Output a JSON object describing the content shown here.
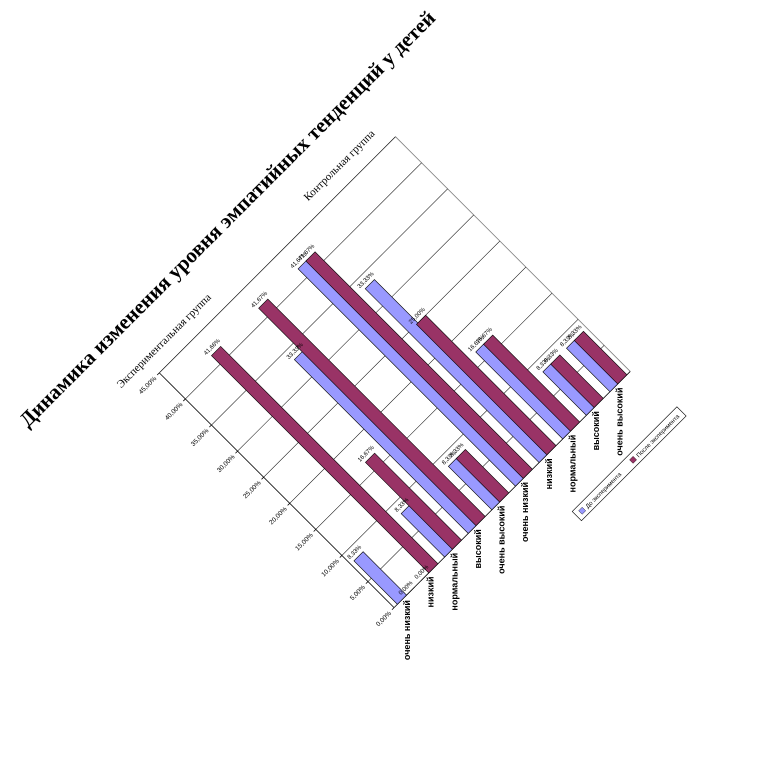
{
  "chart_data": {
    "type": "bar",
    "title": "Динамика изменения уровня эмпатийных тенденций у детей",
    "group_labels": [
      "Экспериментальная группа",
      "Контрольная группа"
    ],
    "categories": [
      "очень низкий",
      "низкий",
      "нормальный",
      "высокий",
      "очень высокий",
      "очень низкий",
      "низкий",
      "нормальный",
      "высокий",
      "очень высокий"
    ],
    "series": [
      {
        "name": "До эксперимента",
        "values": [
          8.33,
          0.0,
          8.33,
          33.33,
          8.33,
          41.67,
          33.33,
          16.67,
          8.33,
          8.33
        ],
        "labels": [
          "8,33%",
          "0,00%",
          "8,33%",
          "33,33%",
          "8,33%",
          "41,67%",
          "33,33%",
          "16,67%",
          "8,33%",
          "8,33%"
        ]
      },
      {
        "name": "После эксперимента",
        "values": [
          0.0,
          41.66,
          16.67,
          41.67,
          8.33,
          41.67,
          25.0,
          16.67,
          8.33,
          8.33
        ],
        "labels": [
          "0,00%",
          "41,66%",
          "16,67%",
          "41,67%",
          "8,33%",
          "41,67%",
          "25,00%",
          "16,67%",
          "8,33%",
          "8,33%"
        ]
      }
    ],
    "ylim": [
      0,
      45
    ],
    "yticks": [
      "0,00%",
      "5,00%",
      "10,00%",
      "15,00%",
      "20,00%",
      "25,00%",
      "30,00%",
      "35,00%",
      "40,00%",
      "45,00%"
    ],
    "grid": true,
    "legend_position": "bottom-right",
    "colors": {
      "series1": "#9999ff",
      "series2": "#993366",
      "gridline": "#000000",
      "axis": "#808080"
    }
  }
}
